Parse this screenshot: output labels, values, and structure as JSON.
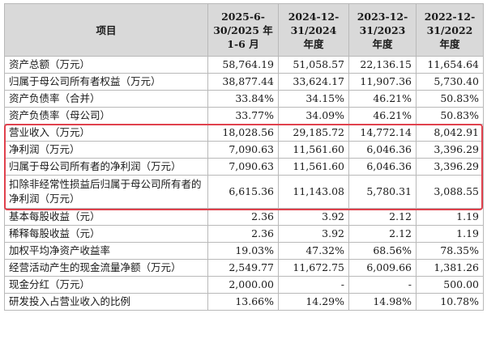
{
  "table": {
    "header": {
      "item": "项目",
      "periods": [
        [
          "2025-6-",
          "30/2025 年",
          "1-6 月"
        ],
        [
          "2024-12-",
          "31/2024",
          "年度"
        ],
        [
          "2023-12-",
          "31/2023",
          "年度"
        ],
        [
          "2022-12-",
          "31/2022",
          "年度"
        ]
      ]
    },
    "rows": [
      {
        "label": "资产总额（万元）",
        "values": [
          "58,764.19",
          "51,058.57",
          "22,136.15",
          "11,654.64"
        ]
      },
      {
        "label": "归属于母公司所有者权益（万元）",
        "values": [
          "38,877.44",
          "33,624.17",
          "11,907.36",
          "5,730.40"
        ]
      },
      {
        "label": "资产负债率（合并）",
        "values": [
          "33.84%",
          "34.15%",
          "46.21%",
          "50.83%"
        ]
      },
      {
        "label": "资产负债率（母公司）",
        "values": [
          "33.77%",
          "34.09%",
          "46.21%",
          "50.83%"
        ]
      },
      {
        "label": "营业收入（万元）",
        "values": [
          "18,028.56",
          "29,185.72",
          "14,772.14",
          "8,042.91"
        ]
      },
      {
        "label": "净利润（万元）",
        "values": [
          "7,090.63",
          "11,561.60",
          "6,046.36",
          "3,396.29"
        ]
      },
      {
        "label": "归属于母公司所有者的净利润（万元）",
        "values": [
          "7,090.63",
          "11,561.60",
          "6,046.36",
          "3,396.29"
        ]
      },
      {
        "label": "扣除非经常性损益后归属于母公司所有者的净利润（万元）",
        "values": [
          "6,615.36",
          "11,143.08",
          "5,780.31",
          "3,088.55"
        ]
      },
      {
        "label": "基本每股收益（元）",
        "values": [
          "2.36",
          "3.92",
          "2.12",
          "1.19"
        ]
      },
      {
        "label": "稀释每股收益（元）",
        "values": [
          "2.36",
          "3.92",
          "2.12",
          "1.19"
        ]
      },
      {
        "label": "加权平均净资产收益率",
        "values": [
          "19.03%",
          "47.32%",
          "68.56%",
          "78.35%"
        ]
      },
      {
        "label": "经营活动产生的现金流量净额（万元）",
        "values": [
          "2,549.77",
          "11,672.75",
          "6,009.66",
          "1,381.26"
        ]
      },
      {
        "label": "现金分红（万元）",
        "values": [
          "2,000.00",
          "-",
          "-",
          "500.00"
        ]
      },
      {
        "label": "研发投入占营业收入的比例",
        "values": [
          "13.66%",
          "14.29%",
          "14.98%",
          "10.78%"
        ]
      }
    ]
  },
  "highlight": {
    "color": "#e0414d"
  }
}
